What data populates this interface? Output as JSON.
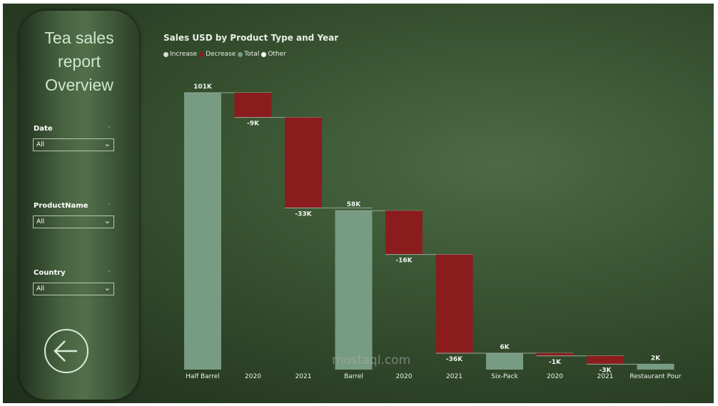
{
  "sidebar": {
    "title_lines": [
      "Tea sales",
      "report",
      "Overview"
    ],
    "slicers": [
      {
        "label": "Date",
        "value": "All"
      },
      {
        "label": "ProductName",
        "value": "All"
      },
      {
        "label": "Country",
        "value": "All"
      }
    ],
    "back_button": "back-arrow-icon"
  },
  "watermark": "mostaql.com",
  "colors": {
    "increase": "#dcdcdc",
    "decrease": "#8b1c1e",
    "total": "#779b83",
    "other": "#ffffff"
  },
  "chart_data": {
    "type": "waterfall",
    "title": "Sales USD by Product Type and Year",
    "legend": [
      "Increase",
      "Decrease",
      "Total",
      "Other"
    ],
    "legend_position": "top-left",
    "categories": [
      "Half Barrel",
      "2020",
      "2021",
      "Barrel",
      "2020",
      "2021",
      "Six-Pack",
      "2020",
      "2021",
      "Restaurant Pour"
    ],
    "values": [
      101,
      -9,
      -33,
      58,
      -16,
      -36,
      6,
      -1,
      -3,
      2
    ],
    "kinds": [
      "total",
      "decrease",
      "decrease",
      "total",
      "decrease",
      "decrease",
      "total",
      "decrease",
      "decrease",
      "total"
    ],
    "labels": [
      "101K",
      "-9K",
      "-33K",
      "58K",
      "-16K",
      "-36K",
      "6K",
      "-1K",
      "-3K",
      "2K"
    ],
    "unit": "K USD",
    "ylim": [
      0,
      101
    ],
    "grid": false
  }
}
